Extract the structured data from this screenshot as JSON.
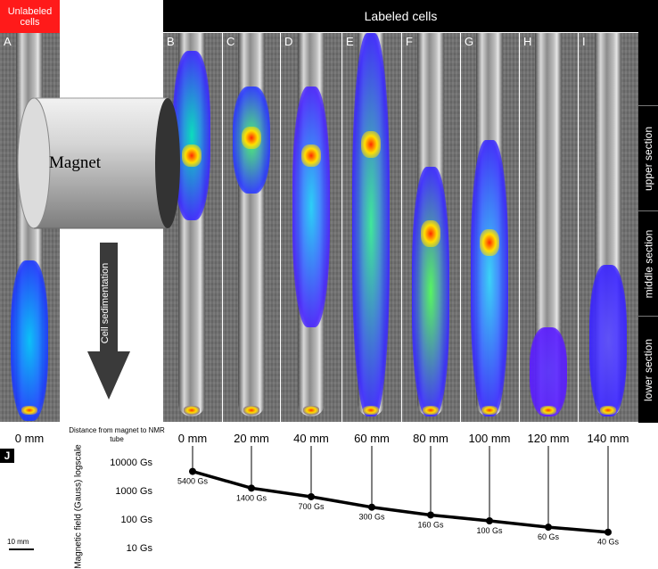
{
  "header": {
    "unlabeled": "Unlabeled cells",
    "labeled": "Labeled cells"
  },
  "sections": [
    "upper section",
    "middle section",
    "lower section"
  ],
  "panels": [
    {
      "letter": "A",
      "distance": "0 mm"
    },
    {
      "letter": "B",
      "distance": "0 mm"
    },
    {
      "letter": "C",
      "distance": "20 mm"
    },
    {
      "letter": "D",
      "distance": "40 mm"
    },
    {
      "letter": "E",
      "distance": "60 mm"
    },
    {
      "letter": "F",
      "distance": "80 mm"
    },
    {
      "letter": "G",
      "distance": "100 mm"
    },
    {
      "letter": "H",
      "distance": "120 mm"
    },
    {
      "letter": "I",
      "distance": "140 mm"
    }
  ],
  "magnet_label": "Magnet",
  "sedimentation_label": "Cell sedimentation",
  "distance_title": "Distance from magnet to NMR tube",
  "panel_j": "J",
  "scale_bar": "10 mm",
  "chart_data": {
    "type": "line",
    "ylabel": "Magnetic field (Gauss) logscale",
    "yscale": "log",
    "ylim": [
      10,
      10000
    ],
    "yticks": [
      "10000 Gs",
      "1000 Gs",
      "100 Gs",
      "10 Gs"
    ],
    "x": [
      "0 mm",
      "20 mm",
      "40 mm",
      "60 mm",
      "80 mm",
      "100 mm",
      "120 mm",
      "140 mm"
    ],
    "values": [
      5400,
      1400,
      700,
      300,
      160,
      100,
      60,
      40
    ],
    "point_labels": [
      "5400 Gs",
      "1400 Gs",
      "700 Gs",
      "300 Gs",
      "160 Gs",
      "100 Gs",
      "60 Gs",
      "40 Gs"
    ]
  },
  "colors": {
    "unlabeled_header": "#ff1a1a",
    "labeled_header": "#000000",
    "heat_low": "#6a00ff",
    "heat_mid": "#00c8ff",
    "heat_high": "#ff2a00"
  }
}
